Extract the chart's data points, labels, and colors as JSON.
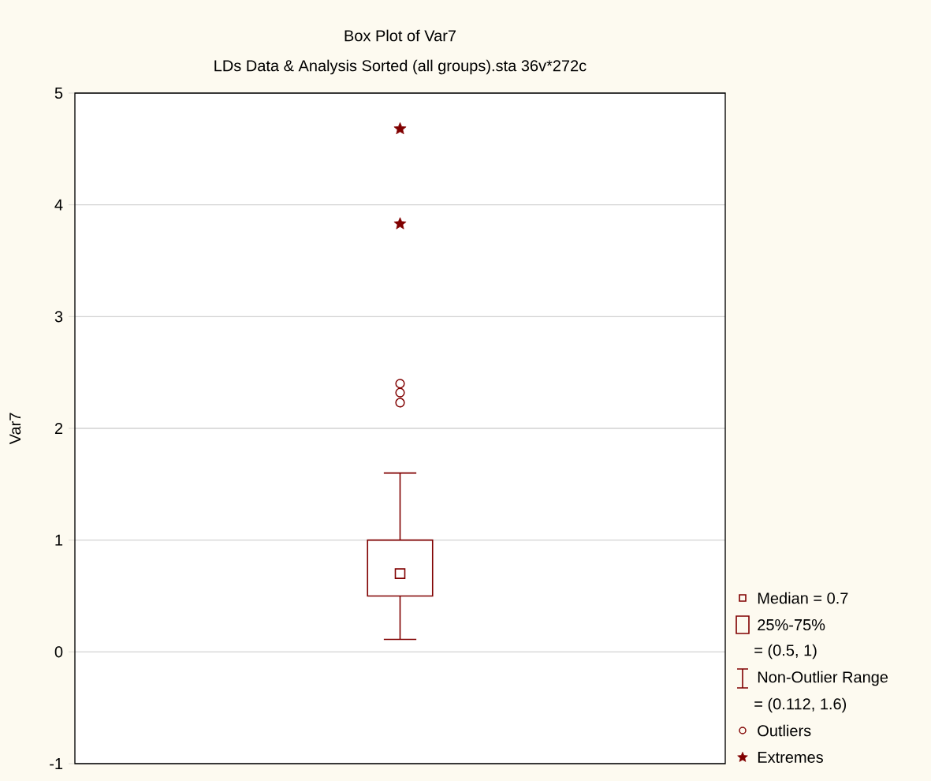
{
  "chart_data": {
    "type": "box",
    "title": "Box Plot of Var7",
    "subtitle": "LDs Data & Analysis Sorted (all groups).sta 36v*272c",
    "ylabel": "Var7",
    "categories": [
      null
    ],
    "series": [
      {
        "type": "box",
        "color": "#800000",
        "boxes": [
          {
            "low": 0.112,
            "q1": 0.5,
            "median": 0.7,
            "q3": 1,
            "high": 1.6,
            "outliers": [
              2.4,
              2.32,
              2.23
            ]
          }
        ]
      },
      {
        "type": "scatter",
        "name": "Extremes",
        "color": "#800000",
        "marker": "star",
        "values": [
          4.68
        ]
      },
      {
        "type": "scatter",
        "color": "#800000",
        "marker": "star",
        "values": [
          3.83
        ]
      }
    ],
    "annotations": [
      "Median = 0.7",
      "25%-75%",
      "= (0.5, 1)",
      "Non-Outlier Range",
      "= (0.112, 1.6)",
      "Outliers"
    ],
    "ylim": [
      -1,
      5
    ],
    "yticks": [
      -1,
      0,
      1,
      2,
      3,
      4,
      5
    ],
    "grid": "y",
    "legend": "right",
    "tick_labels": "y"
  }
}
